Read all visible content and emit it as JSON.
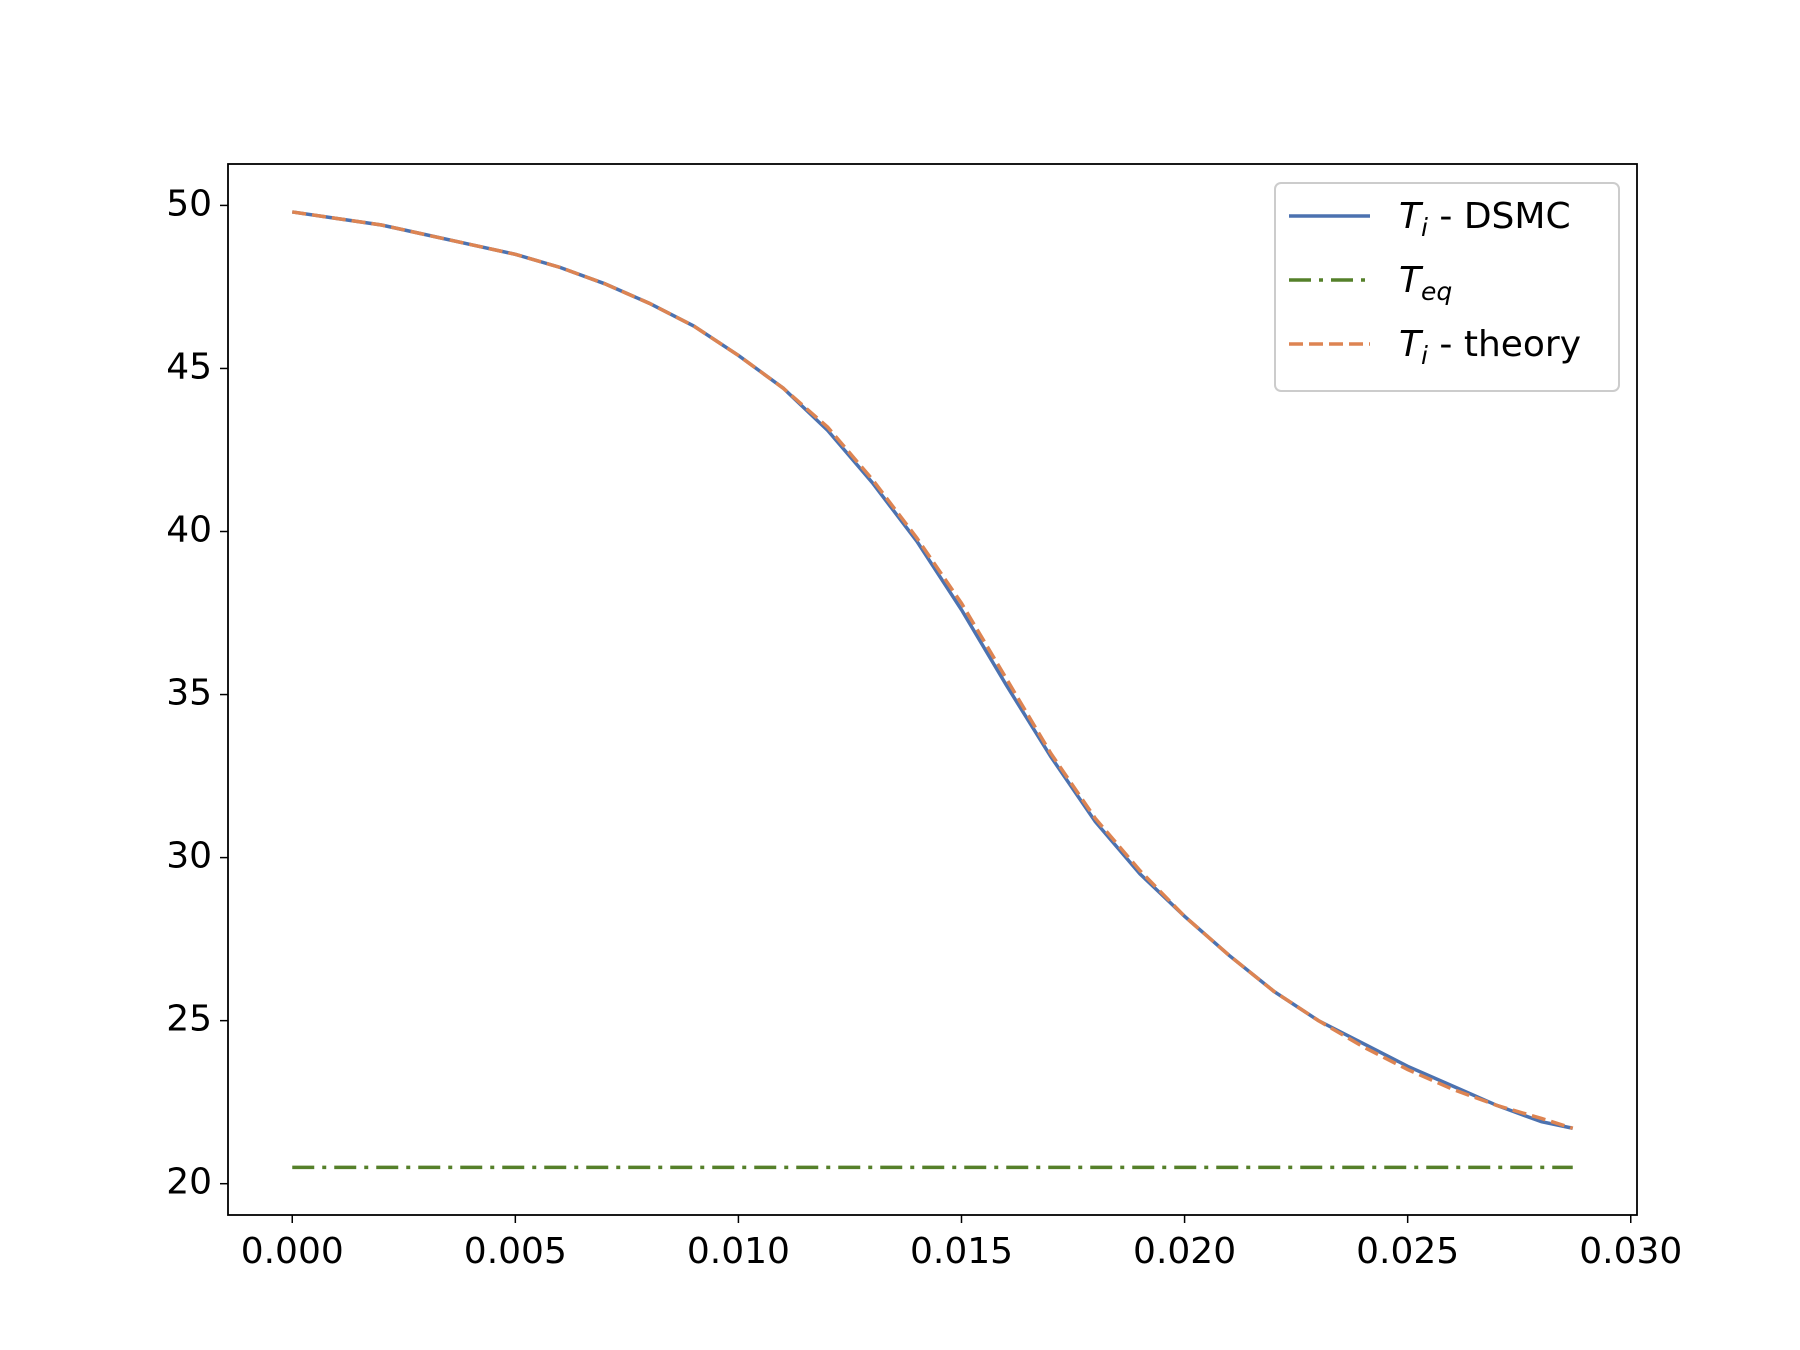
{
  "chart_data": {
    "type": "line",
    "xlim": [
      -0.00144,
      0.03014
    ],
    "ylim": [
      19.04,
      51.27
    ],
    "xticks": [
      {
        "value": 0,
        "label": "0.000"
      },
      {
        "value": 0.005,
        "label": "0.005"
      },
      {
        "value": 0.01,
        "label": "0.010"
      },
      {
        "value": 0.015,
        "label": "0.015"
      },
      {
        "value": 0.02,
        "label": "0.020"
      },
      {
        "value": 0.025,
        "label": "0.025"
      },
      {
        "value": 0.03,
        "label": "0.030"
      }
    ],
    "yticks": [
      20,
      25,
      30,
      35,
      40,
      45,
      50
    ],
    "grid": false,
    "legend": "upper right",
    "series": [
      {
        "name": "T_i - DSMC",
        "color": "#4c72b0",
        "style": "solid",
        "x": [
          0,
          0.001,
          0.002,
          0.003,
          0.004,
          0.005,
          0.006,
          0.007,
          0.008,
          0.009,
          0.01,
          0.011,
          0.012,
          0.013,
          0.014,
          0.015,
          0.016,
          0.017,
          0.018,
          0.019,
          0.02,
          0.021,
          0.022,
          0.023,
          0.024,
          0.025,
          0.026,
          0.027,
          0.028,
          0.0287
        ],
        "values": [
          49.8,
          49.6,
          49.4,
          49.1,
          48.8,
          48.5,
          48.1,
          47.6,
          47.0,
          46.3,
          45.4,
          44.4,
          43.1,
          41.5,
          39.7,
          37.6,
          35.3,
          33.1,
          31.1,
          29.5,
          28.2,
          27.0,
          25.9,
          25.0,
          24.3,
          23.6,
          23.0,
          22.4,
          21.9,
          21.7
        ]
      },
      {
        "name": "T_eq",
        "color": "#55802a",
        "style": "dashdot",
        "x": [
          0,
          0.0287
        ],
        "values": [
          20.5,
          20.5
        ]
      },
      {
        "name": "T_i - theory",
        "color": "#dd8452",
        "style": "dashed",
        "x": [
          0,
          0.001,
          0.002,
          0.003,
          0.004,
          0.005,
          0.006,
          0.007,
          0.008,
          0.009,
          0.01,
          0.011,
          0.012,
          0.013,
          0.014,
          0.015,
          0.016,
          0.017,
          0.018,
          0.019,
          0.02,
          0.021,
          0.022,
          0.023,
          0.024,
          0.025,
          0.026,
          0.027,
          0.028,
          0.0287
        ],
        "values": [
          49.8,
          49.6,
          49.4,
          49.1,
          48.8,
          48.5,
          48.1,
          47.6,
          47.0,
          46.3,
          45.4,
          44.4,
          43.2,
          41.6,
          39.8,
          37.8,
          35.5,
          33.2,
          31.2,
          29.6,
          28.2,
          27.0,
          25.9,
          25.0,
          24.2,
          23.5,
          22.9,
          22.4,
          22.0,
          21.7
        ]
      }
    ]
  }
}
